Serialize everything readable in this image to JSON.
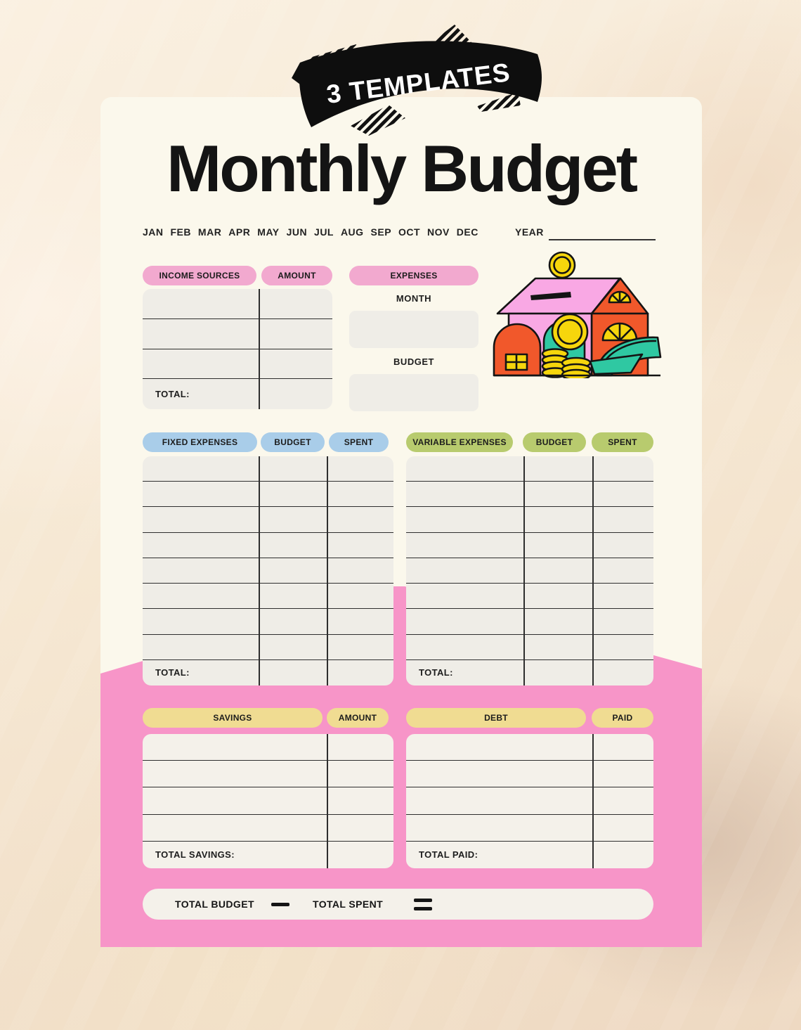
{
  "banner": {
    "text": "3 TEMPLATES"
  },
  "page": {
    "title": "Monthly Budget"
  },
  "month_row": {
    "months": [
      "JAN",
      "FEB",
      "MAR",
      "APR",
      "MAY",
      "JUN",
      "JUL",
      "AUG",
      "SEP",
      "OCT",
      "NOV",
      "DEC"
    ],
    "year_label": "YEAR"
  },
  "income_table": {
    "headers": [
      "INCOME SOURCES",
      "AMOUNT"
    ],
    "data_rows": 3,
    "total_label": "TOTAL:"
  },
  "expenses_panel": {
    "header": "EXPENSES",
    "month_label": "MONTH",
    "budget_label": "BUDGET"
  },
  "fixed_table": {
    "headers": [
      "FIXED EXPENSES",
      "BUDGET",
      "SPENT"
    ],
    "data_rows": 8,
    "total_label": "TOTAL:"
  },
  "variable_table": {
    "headers": [
      "VARIABLE EXPENSES",
      "BUDGET",
      "SPENT"
    ],
    "data_rows": 8,
    "total_label": "TOTAL:"
  },
  "savings_table": {
    "headers": [
      "SAVINGS",
      "AMOUNT"
    ],
    "data_rows": 4,
    "total_label": "TOTAL SAVINGS:"
  },
  "debt_table": {
    "headers": [
      "DEBT",
      "PAID"
    ],
    "data_rows": 4,
    "total_label": "TOTAL PAID:"
  },
  "summary_bar": {
    "budget_label": "TOTAL BUDGET",
    "minus_icon": "−",
    "equals_icon": "=",
    "spent_label": "TOTAL SPENT"
  },
  "illustration": {
    "name": "piggy-bank-house"
  },
  "colors": {
    "backdrop_beige": "#F4E6D1",
    "card_bg": "#FBF8EC",
    "pink_band": "#F795C8",
    "pink_pill": "#F2A9CF",
    "blue_pill": "#A9CDE9",
    "green_pill": "#B8CB6E",
    "yellow_pill": "#F0DC92",
    "table_bg": "#EFEDE7",
    "line": "#2E2E2E",
    "banner_bg": "#0E0E0E",
    "banner_text": "#FFFFFF",
    "house_pink": "#F9A8E4",
    "house_orange": "#F1582B",
    "house_teal": "#2FC8A2",
    "coin_yellow": "#F6D60C"
  }
}
